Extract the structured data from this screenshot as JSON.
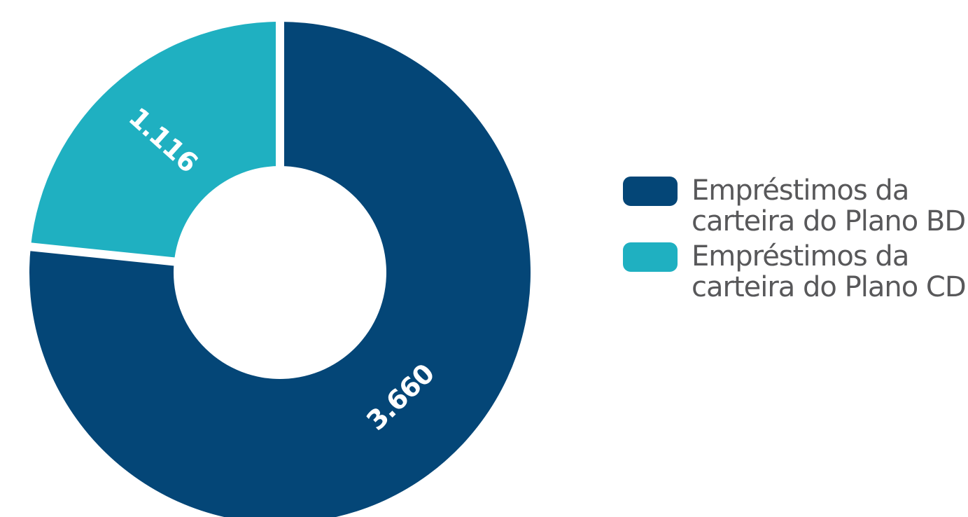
{
  "chart_data": {
    "type": "pie",
    "donut": true,
    "series": [
      {
        "name": "Empréstimos da\ncarteira do Plano BD",
        "value": 3660,
        "label": "3.660",
        "color": "#044677"
      },
      {
        "name": "Empréstimos da\ncarteira do Plano CD",
        "value": 1116,
        "label": "1.116",
        "color": "#1fb0c1"
      }
    ],
    "legend_position": "right"
  }
}
